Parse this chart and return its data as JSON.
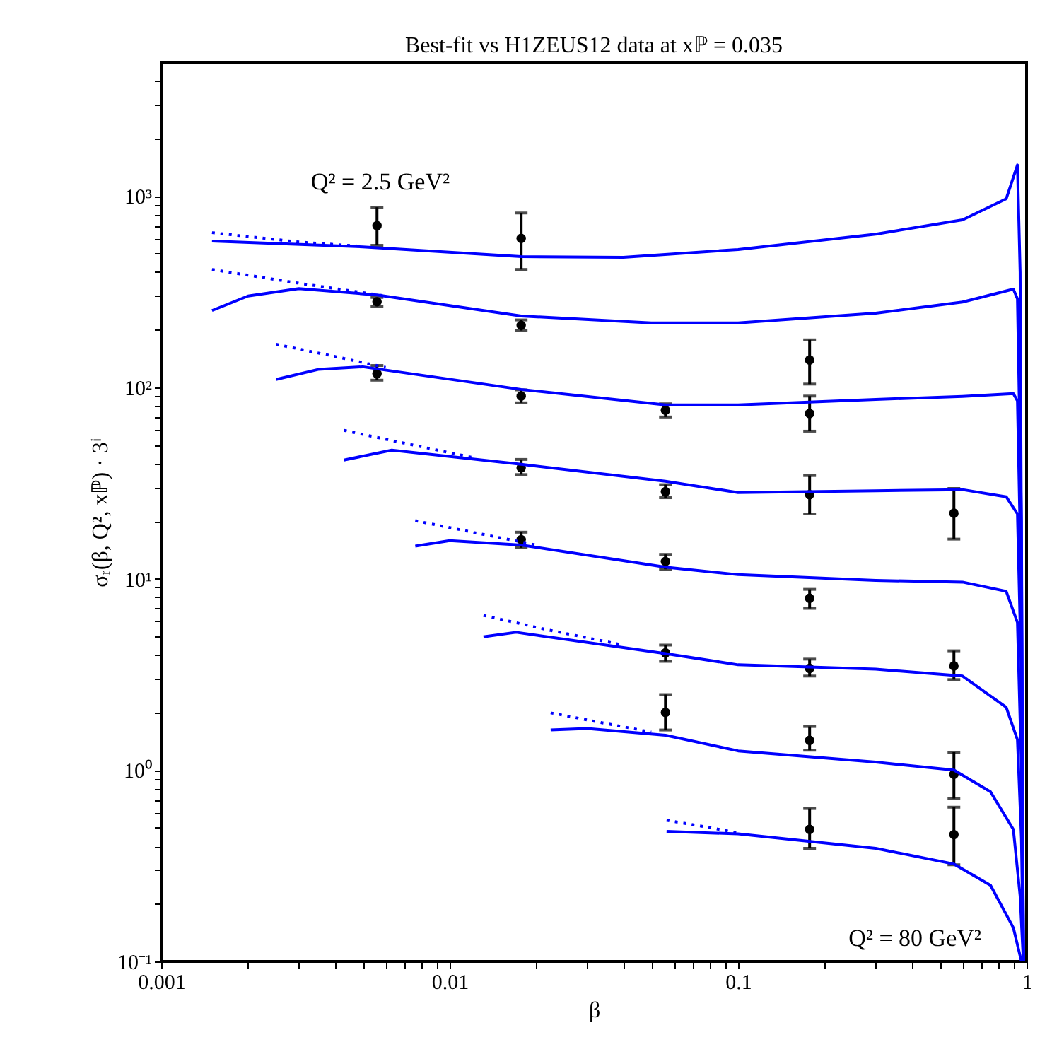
{
  "chart_data": {
    "type": "line",
    "title": "Best-fit vs H1ZEUS12 data at xℙ = 0.035",
    "xlabel": "β",
    "ylabel": "σᵣ(β, Q², xℙ) · 3ⁱ",
    "log": "xy",
    "grid": false,
    "xlim": [
      0.001,
      1
    ],
    "ylim": [
      0.1,
      5000
    ],
    "xticks": [
      0.001,
      {
        "value": 0.002,
        "label": null
      },
      {
        "value": 0.003,
        "label": null
      },
      {
        "value": 0.004,
        "label": null
      },
      {
        "value": 0.005,
        "label": null
      },
      {
        "value": 0.006,
        "label": null
      },
      {
        "value": 0.007,
        "label": null
      },
      {
        "value": 0.008,
        "label": null
      },
      {
        "value": 0.009,
        "label": null
      },
      0.01,
      {
        "value": 0.02,
        "label": null
      },
      {
        "value": 0.03,
        "label": null
      },
      {
        "value": 0.04,
        "label": null
      },
      {
        "value": 0.05,
        "label": null
      },
      {
        "value": 0.06,
        "label": null
      },
      {
        "value": 0.07,
        "label": null
      },
      {
        "value": 0.08,
        "label": null
      },
      {
        "value": 0.09,
        "label": null
      },
      0.1,
      {
        "value": 0.2,
        "label": null
      },
      {
        "value": 0.3,
        "label": null
      },
      {
        "value": 0.4,
        "label": null
      },
      {
        "value": 0.5,
        "label": null
      },
      {
        "value": 0.6,
        "label": null
      },
      {
        "value": 0.7,
        "label": null
      },
      {
        "value": 0.8,
        "label": null
      },
      {
        "value": 0.9,
        "label": null
      },
      1
    ],
    "yticks": [
      {
        "value": 0.1,
        "label": "10⁻¹"
      },
      {
        "value": 0.2,
        "label": null
      },
      {
        "value": 0.3,
        "label": null
      },
      {
        "value": 0.4,
        "label": null
      },
      {
        "value": 0.5,
        "label": null
      },
      {
        "value": 0.6,
        "label": null
      },
      {
        "value": 0.7,
        "label": null
      },
      {
        "value": 0.8,
        "label": null
      },
      {
        "value": 0.9,
        "label": null
      },
      {
        "value": 1,
        "label": "10⁰"
      },
      {
        "value": 2,
        "label": null
      },
      {
        "value": 3,
        "label": null
      },
      {
        "value": 4,
        "label": null
      },
      {
        "value": 5,
        "label": null
      },
      {
        "value": 6,
        "label": null
      },
      {
        "value": 7,
        "label": null
      },
      {
        "value": 8,
        "label": null
      },
      {
        "value": 9,
        "label": null
      },
      {
        "value": 10,
        "label": "10¹"
      },
      {
        "value": 20,
        "label": null
      },
      {
        "value": 30,
        "label": null
      },
      {
        "value": 40,
        "label": null
      },
      {
        "value": 50,
        "label": null
      },
      {
        "value": 60,
        "label": null
      },
      {
        "value": 70,
        "label": null
      },
      {
        "value": 80,
        "label": null
      },
      {
        "value": 90,
        "label": null
      },
      {
        "value": 100,
        "label": "10²"
      },
      {
        "value": 200,
        "label": null
      },
      {
        "value": 300,
        "label": null
      },
      {
        "value": 400,
        "label": null
      },
      {
        "value": 500,
        "label": null
      },
      {
        "value": 600,
        "label": null
      },
      {
        "value": 700,
        "label": null
      },
      {
        "value": 800,
        "label": null
      },
      {
        "value": 900,
        "label": null
      },
      {
        "value": 1000,
        "label": "10³"
      },
      {
        "value": 2000,
        "label": null
      },
      {
        "value": 3000,
        "label": null
      },
      {
        "value": 4000,
        "label": null
      }
    ],
    "annotations": [
      "Q² = 2.5 GeV²",
      "Q² = 80 GeV²"
    ],
    "series": [
      {
        "type": "scatter",
        "color": "#000000",
        "marker": "circle",
        "x": [
          0.0056,
          0.0177,
          0.0056,
          0.0177,
          0.0056,
          0.0177,
          0.056,
          0.177,
          0.177,
          0.0177,
          0.056,
          0.177,
          0.56,
          0.0177,
          0.056,
          0.177,
          0.056,
          0.177,
          0.56,
          0.056,
          0.177,
          0.56,
          0.177,
          0.56
        ],
        "values": [
          700,
          600,
          280,
          211,
          118,
          90,
          76,
          139,
          73,
          38,
          28.5,
          27.5,
          22,
          16,
          12.3,
          7.9,
          4.1,
          3.4,
          3.5,
          2.0,
          1.43,
          0.95,
          0.49,
          0.46
        ],
        "errors": [
          [
            552,
            873
          ],
          [
            413,
            815
          ],
          [
            265,
            295
          ],
          [
            198,
            225
          ],
          [
            109,
            130
          ],
          [
            83,
            97
          ],
          [
            70,
            82
          ],
          [
            104,
            177
          ],
          [
            59,
            90
          ],
          [
            35,
            42
          ],
          [
            26.5,
            31
          ],
          [
            21.8,
            34.6
          ],
          [
            16.1,
            29.6
          ],
          [
            14.5,
            17.5
          ],
          [
            11.2,
            13.4
          ],
          [
            7.0,
            8.8
          ],
          [
            3.7,
            4.5
          ],
          [
            3.1,
            3.8
          ],
          [
            2.97,
            4.2
          ],
          [
            1.62,
            2.48
          ],
          [
            1.27,
            1.69
          ],
          [
            0.71,
            1.24
          ],
          [
            0.39,
            0.63
          ],
          [
            0.32,
            0.64
          ]
        ]
      },
      {
        "color": "#0000ff",
        "line_style": "solid",
        "x": [
          0.0015,
          0.005,
          0.0177,
          0.04,
          0.1,
          0.3,
          0.6,
          0.85,
          0.93,
          0.95,
          0.975
        ],
        "values": [
          581,
          542,
          482,
          478,
          525,
          632,
          750,
          966,
          1452,
          400,
          0.1
        ]
      },
      {
        "color": "#0000ff",
        "line_style": "dotted",
        "x": [
          0.0015,
          0.003,
          0.005
        ],
        "values": [
          643,
          575,
          545
        ]
      },
      {
        "color": "#0000ff",
        "line_style": "solid",
        "x": [
          0.0015,
          0.002,
          0.003,
          0.0056,
          0.0177,
          0.05,
          0.1,
          0.3,
          0.6,
          0.9,
          0.93,
          0.96,
          0.975
        ],
        "values": [
          252,
          300,
          328,
          304,
          236,
          217,
          217,
          244,
          279,
          326,
          290,
          20,
          0.1
        ]
      },
      {
        "color": "#0000ff",
        "line_style": "dotted",
        "x": [
          0.0015,
          0.003,
          0.006
        ],
        "values": [
          413,
          350,
          300
        ]
      },
      {
        "color": "#0000ff",
        "line_style": "solid",
        "x": [
          0.0025,
          0.0035,
          0.005,
          0.0177,
          0.056,
          0.1,
          0.3,
          0.6,
          0.9,
          0.93,
          0.96,
          0.975
        ],
        "values": [
          110,
          124,
          128,
          97.5,
          81,
          81,
          86.5,
          89.6,
          92.7,
          85,
          8,
          0.1
        ]
      },
      {
        "color": "#0000ff",
        "line_style": "dotted",
        "x": [
          0.0025,
          0.004,
          0.006
        ],
        "values": [
          168,
          145,
          127
        ]
      },
      {
        "color": "#0000ff",
        "line_style": "solid",
        "x": [
          0.0043,
          0.0063,
          0.0177,
          0.056,
          0.1,
          0.3,
          0.6,
          0.85,
          0.93,
          0.96,
          0.975
        ],
        "values": [
          41.7,
          47,
          39.6,
          32.3,
          28.2,
          28.8,
          29.2,
          26.8,
          21.8,
          3,
          0.1
        ]
      },
      {
        "color": "#0000ff",
        "line_style": "dotted",
        "x": [
          0.0043,
          0.007,
          0.012
        ],
        "values": [
          59.6,
          51,
          43
        ]
      },
      {
        "color": "#0000ff",
        "line_style": "solid",
        "x": [
          0.0076,
          0.01,
          0.0177,
          0.056,
          0.1,
          0.3,
          0.6,
          0.85,
          0.93,
          0.96,
          0.975
        ],
        "values": [
          14.8,
          15.8,
          15.0,
          11.5,
          10.5,
          9.8,
          9.6,
          8.6,
          5.9,
          1.03,
          0.1
        ]
      },
      {
        "color": "#0000ff",
        "line_style": "dotted",
        "x": [
          0.0076,
          0.012,
          0.02
        ],
        "values": [
          20.1,
          17.5,
          15.0
        ]
      },
      {
        "color": "#0000ff",
        "line_style": "solid",
        "x": [
          0.0131,
          0.017,
          0.056,
          0.1,
          0.3,
          0.6,
          0.85,
          0.93,
          0.96,
          0.975
        ],
        "values": [
          4.97,
          5.25,
          4.06,
          3.55,
          3.37,
          3.1,
          2.13,
          1.44,
          0.44,
          0.1
        ]
      },
      {
        "color": "#0000ff",
        "line_style": "dotted",
        "x": [
          0.0131,
          0.022,
          0.04
        ],
        "values": [
          6.43,
          5.4,
          4.5
        ]
      },
      {
        "color": "#0000ff",
        "line_style": "solid",
        "x": [
          0.0224,
          0.03,
          0.056,
          0.1,
          0.3,
          0.56,
          0.75,
          0.9,
          0.95,
          0.975
        ],
        "values": [
          1.62,
          1.65,
          1.52,
          1.26,
          1.1,
          1.0,
          0.77,
          0.49,
          0.22,
          0.1
        ]
      },
      {
        "color": "#0000ff",
        "line_style": "dotted",
        "x": [
          0.0224,
          0.035,
          0.05
        ],
        "values": [
          1.99,
          1.75,
          1.58
        ]
      },
      {
        "color": "#0000ff",
        "line_style": "solid",
        "x": [
          0.0565,
          0.1,
          0.3,
          0.56,
          0.75,
          0.9,
          0.96
        ],
        "values": [
          0.478,
          0.464,
          0.39,
          0.323,
          0.25,
          0.15,
          0.1
        ]
      },
      {
        "color": "#0000ff",
        "line_style": "dotted",
        "x": [
          0.0565,
          0.08,
          0.1
        ],
        "values": [
          0.547,
          0.5,
          0.47
        ]
      }
    ]
  }
}
